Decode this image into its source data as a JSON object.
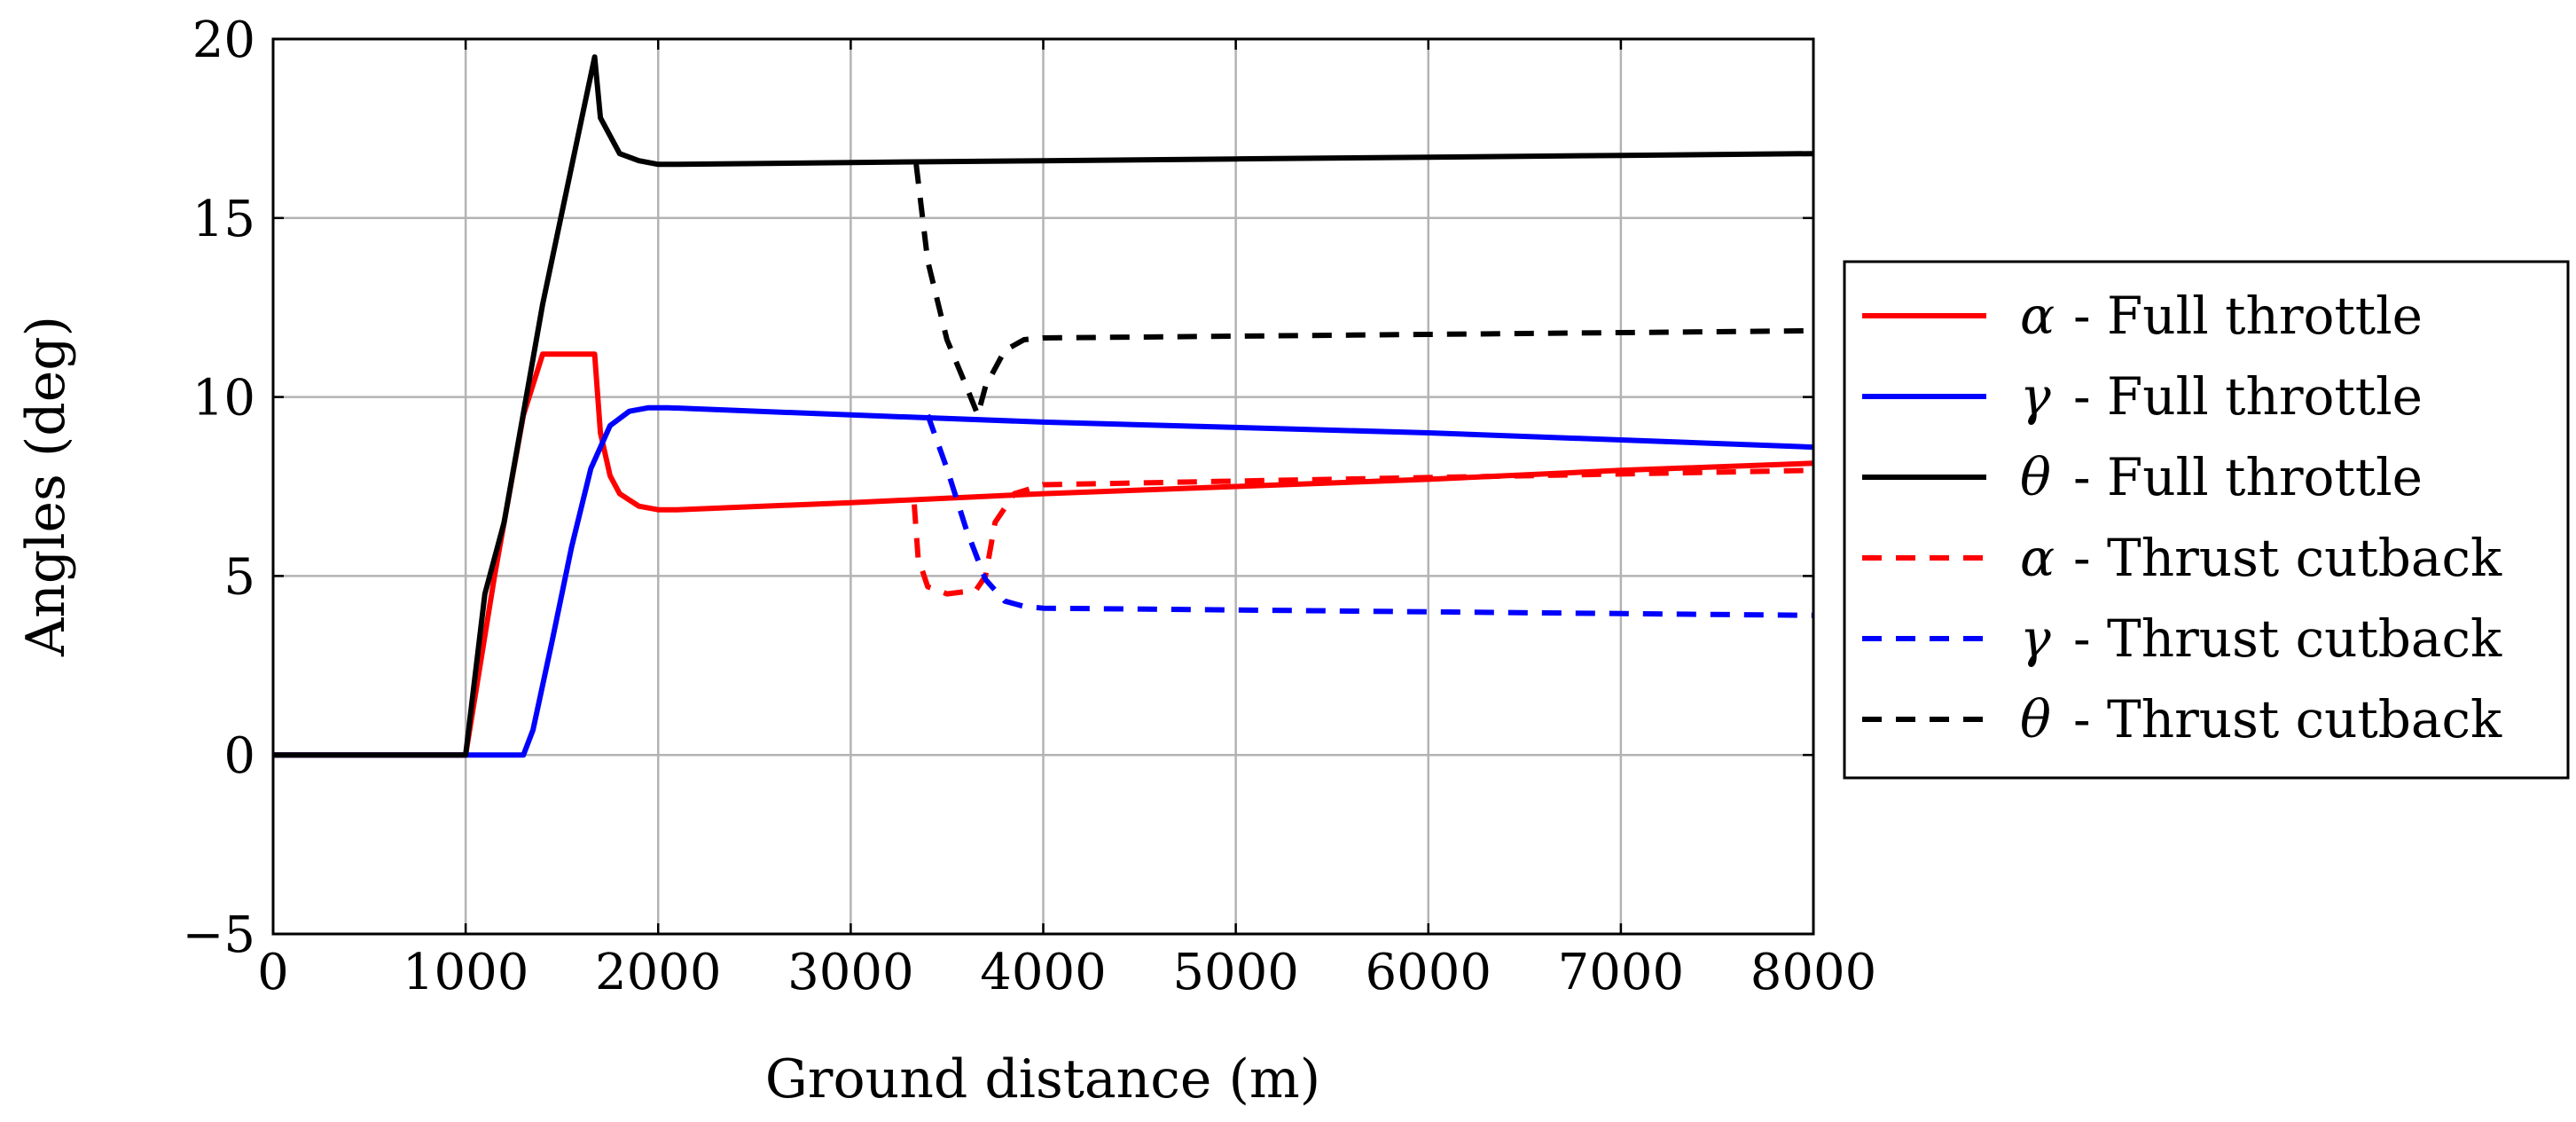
{
  "chart_data": {
    "type": "line",
    "title": "",
    "xlabel": "Ground distance (m)",
    "ylabel": "Angles (deg)",
    "xlim": [
      0,
      8000
    ],
    "ylim": [
      -5,
      20
    ],
    "xticks": [
      0,
      1000,
      2000,
      3000,
      4000,
      5000,
      6000,
      7000,
      8000
    ],
    "yticks": [
      -5,
      0,
      5,
      10,
      15,
      20
    ],
    "xtick_labels": [
      "0",
      "1000",
      "2000",
      "3000",
      "4000",
      "5000",
      "6000",
      "7000",
      "8000"
    ],
    "ytick_labels": [
      "−5",
      "0",
      "5",
      "10",
      "15",
      "20"
    ],
    "grid": true,
    "legend_position": "right-outside",
    "series": [
      {
        "symbol": "α",
        "label": "- Full throttle",
        "color": "#ff0000",
        "style": "solid",
        "x": [
          0,
          1000,
          1150,
          1300,
          1400,
          1500,
          1670,
          1700,
          1750,
          1800,
          1900,
          2000,
          2100,
          3000,
          4000,
          5000,
          6000,
          7000,
          8000
        ],
        "y": [
          0,
          0,
          5.0,
          9.5,
          11.2,
          11.2,
          11.2,
          9.0,
          7.8,
          7.3,
          6.95,
          6.85,
          6.85,
          7.05,
          7.3,
          7.5,
          7.7,
          7.95,
          8.15
        ]
      },
      {
        "symbol": "γ",
        "label": "- Full throttle",
        "color": "#0000ff",
        "style": "solid",
        "x": [
          0,
          1300,
          1350,
          1450,
          1550,
          1650,
          1750,
          1850,
          1950,
          2050,
          3000,
          4000,
          5000,
          6000,
          7000,
          8000
        ],
        "y": [
          0,
          0,
          0.7,
          3.2,
          5.8,
          8.0,
          9.2,
          9.6,
          9.7,
          9.7,
          9.5,
          9.3,
          9.15,
          9.0,
          8.8,
          8.6
        ]
      },
      {
        "symbol": "θ",
        "label": "- Full throttle",
        "color": "#000000",
        "style": "solid",
        "x": [
          0,
          1000,
          1100,
          1200,
          1400,
          1670,
          1700,
          1800,
          1900,
          2000,
          2100,
          3000,
          4000,
          5000,
          6000,
          7000,
          8000
        ],
        "y": [
          0,
          0,
          4.5,
          6.5,
          12.6,
          19.5,
          17.8,
          16.8,
          16.6,
          16.5,
          16.5,
          16.55,
          16.6,
          16.65,
          16.7,
          16.75,
          16.8
        ]
      },
      {
        "symbol": "α",
        "label": "- Thrust cutback",
        "color": "#ff0000",
        "style": "dashed",
        "x": [
          3330,
          3350,
          3400,
          3500,
          3650,
          3700,
          3750,
          3850,
          4000,
          5000,
          6000,
          7000,
          8000
        ],
        "y": [
          7.0,
          5.5,
          4.7,
          4.5,
          4.6,
          5.0,
          6.5,
          7.3,
          7.55,
          7.65,
          7.75,
          7.85,
          7.95
        ]
      },
      {
        "symbol": "γ",
        "label": "- Thrust cutback",
        "color": "#0000ff",
        "style": "dashed",
        "x": [
          3400,
          3500,
          3600,
          3700,
          3800,
          3900,
          4000,
          5000,
          6000,
          7000,
          8000
        ],
        "y": [
          9.5,
          8.0,
          6.3,
          4.9,
          4.3,
          4.15,
          4.1,
          4.05,
          4.0,
          3.95,
          3.9
        ]
      },
      {
        "symbol": "θ",
        "label": "- Thrust cutback",
        "color": "#000000",
        "style": "dashed",
        "x": [
          3340,
          3400,
          3500,
          3600,
          3660,
          3700,
          3800,
          3900,
          4000,
          5000,
          6000,
          7000,
          8000
        ],
        "y": [
          16.5,
          13.8,
          11.6,
          10.3,
          9.5,
          10.3,
          11.3,
          11.6,
          11.65,
          11.7,
          11.75,
          11.8,
          11.85
        ]
      }
    ]
  }
}
